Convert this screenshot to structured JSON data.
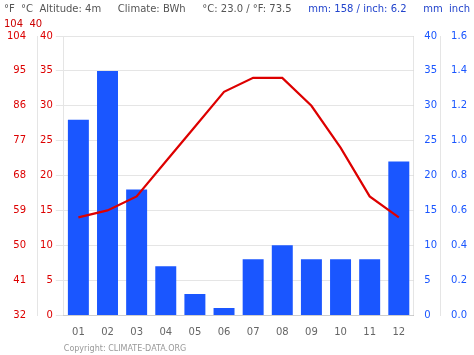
{
  "chart_data": {
    "type": "bar",
    "categories": [
      "01",
      "02",
      "03",
      "04",
      "05",
      "06",
      "07",
      "08",
      "09",
      "10",
      "11",
      "12"
    ],
    "series": [
      {
        "type": "bar",
        "color": "#1a56ff",
        "axis": "y2",
        "values": [
          28,
          35,
          18,
          7,
          3,
          1,
          8,
          10,
          8,
          8,
          8,
          22
        ]
      },
      {
        "type": "line",
        "color": "#dd0000",
        "values": [
          14,
          15,
          17,
          22,
          27,
          32,
          34,
          34,
          30,
          24,
          17,
          14
        ]
      }
    ],
    "ylim": [
      0,
      40
    ],
    "yticks": [
      0,
      5,
      10,
      15,
      20,
      25,
      30,
      35,
      40
    ],
    "y2lim": [
      0,
      40
    ],
    "y2ticks": [
      0,
      5,
      10,
      15,
      20,
      25,
      30,
      35,
      40
    ],
    "y3lim": [
      0,
      40
    ],
    "y3ticks": [
      {
        "value": 0,
        "label": "32"
      },
      {
        "value": 5,
        "label": "41"
      },
      {
        "value": 10,
        "label": "50"
      },
      {
        "value": 15,
        "label": "59"
      },
      {
        "value": 20,
        "label": "68"
      },
      {
        "value": 25,
        "label": "77"
      },
      {
        "value": 30,
        "label": "86"
      },
      {
        "value": 35,
        "label": "95"
      },
      {
        "value": 40,
        "label": "104"
      }
    ],
    "y4lim": [
      0,
      40
    ],
    "y4ticks": [
      {
        "value": 0,
        "label": "0.0"
      },
      {
        "value": 5,
        "label": "0.2"
      },
      {
        "value": 10,
        "label": "0.4"
      },
      {
        "value": 15,
        "label": "0.6"
      },
      {
        "value": 20,
        "label": "0.8"
      },
      {
        "value": 25,
        "label": "1.0"
      },
      {
        "value": 30,
        "label": "1.2"
      },
      {
        "value": 35,
        "label": "1.4"
      },
      {
        "value": 40,
        "label": "1.6"
      }
    ],
    "grid": true,
    "annotations": [
      {
        "text": "°F  °C  Altitude: 4m",
        "color": "#555555"
      },
      {
        "text": "Climate: BWh",
        "color": "#555555"
      },
      {
        "text": "°C: 23.0 / °F: 73.5",
        "color": "#555555"
      },
      {
        "text": "mm: 158 / inch: 6.2",
        "color": "#2244cc"
      },
      {
        "text": "mm  inch",
        "color": "#2244cc"
      },
      {
        "text": "104  40",
        "color": "#cc0000"
      },
      {
        "text": "Copyright: CLIMATE-DATA.ORG",
        "color": "#999999"
      }
    ]
  }
}
